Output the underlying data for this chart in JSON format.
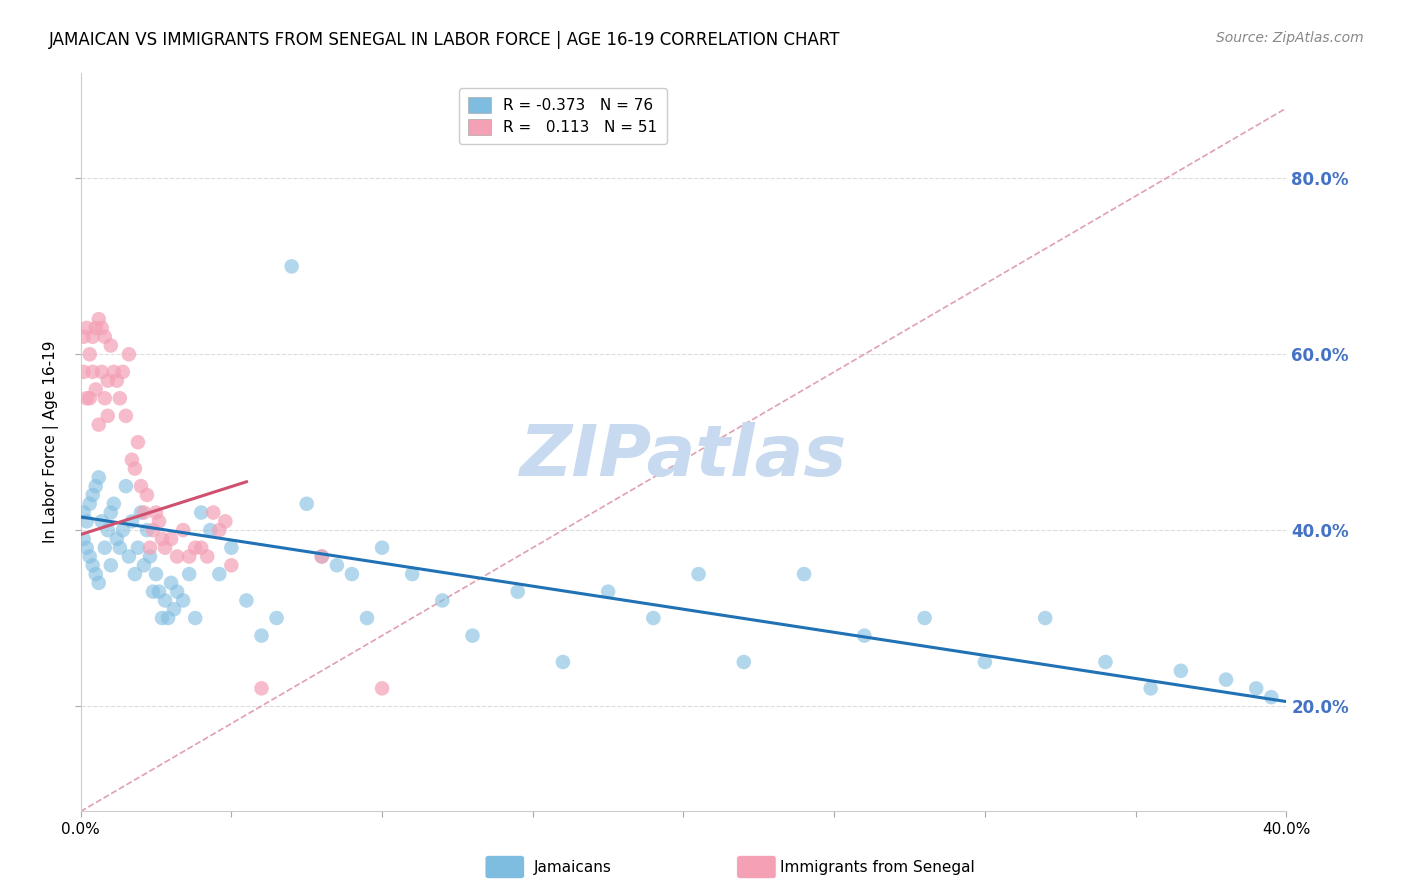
{
  "title": "JAMAICAN VS IMMIGRANTS FROM SENEGAL IN LABOR FORCE | AGE 16-19 CORRELATION CHART",
  "source": "Source: ZipAtlas.com",
  "ylabel": "In Labor Force | Age 16-19",
  "watermark": "ZIPatlas",
  "xlim": [
    0.0,
    0.4
  ],
  "ylim": [
    0.08,
    0.92
  ],
  "xtick_positions": [
    0.0,
    0.05,
    0.1,
    0.15,
    0.2,
    0.25,
    0.3,
    0.35,
    0.4
  ],
  "xtick_labels": [
    "0.0%",
    "",
    "",
    "",
    "",
    "",
    "",
    "",
    "40.0%"
  ],
  "yticks": [
    0.2,
    0.4,
    0.6,
    0.8
  ],
  "legend_line1": "R = -0.373   N = 76",
  "legend_line2": "R =   0.113   N = 51",
  "blue_scatter_x": [
    0.001,
    0.001,
    0.002,
    0.002,
    0.003,
    0.003,
    0.004,
    0.004,
    0.005,
    0.005,
    0.006,
    0.006,
    0.007,
    0.008,
    0.009,
    0.01,
    0.01,
    0.011,
    0.012,
    0.013,
    0.014,
    0.015,
    0.016,
    0.017,
    0.018,
    0.019,
    0.02,
    0.021,
    0.022,
    0.023,
    0.024,
    0.025,
    0.026,
    0.027,
    0.028,
    0.029,
    0.03,
    0.031,
    0.032,
    0.034,
    0.036,
    0.038,
    0.04,
    0.043,
    0.046,
    0.05,
    0.055,
    0.06,
    0.065,
    0.07,
    0.075,
    0.08,
    0.085,
    0.09,
    0.095,
    0.1,
    0.11,
    0.12,
    0.13,
    0.145,
    0.16,
    0.175,
    0.19,
    0.205,
    0.22,
    0.24,
    0.26,
    0.28,
    0.3,
    0.32,
    0.34,
    0.355,
    0.365,
    0.38,
    0.39,
    0.395
  ],
  "blue_scatter_y": [
    0.42,
    0.39,
    0.41,
    0.38,
    0.43,
    0.37,
    0.44,
    0.36,
    0.45,
    0.35,
    0.46,
    0.34,
    0.41,
    0.38,
    0.4,
    0.42,
    0.36,
    0.43,
    0.39,
    0.38,
    0.4,
    0.45,
    0.37,
    0.41,
    0.35,
    0.38,
    0.42,
    0.36,
    0.4,
    0.37,
    0.33,
    0.35,
    0.33,
    0.3,
    0.32,
    0.3,
    0.34,
    0.31,
    0.33,
    0.32,
    0.35,
    0.3,
    0.42,
    0.4,
    0.35,
    0.38,
    0.32,
    0.28,
    0.3,
    0.7,
    0.43,
    0.37,
    0.36,
    0.35,
    0.3,
    0.38,
    0.35,
    0.32,
    0.28,
    0.33,
    0.25,
    0.33,
    0.3,
    0.35,
    0.25,
    0.35,
    0.28,
    0.3,
    0.25,
    0.3,
    0.25,
    0.22,
    0.24,
    0.23,
    0.22,
    0.21
  ],
  "pink_scatter_x": [
    0.001,
    0.001,
    0.002,
    0.002,
    0.003,
    0.003,
    0.004,
    0.004,
    0.005,
    0.005,
    0.006,
    0.006,
    0.007,
    0.007,
    0.008,
    0.008,
    0.009,
    0.009,
    0.01,
    0.011,
    0.012,
    0.013,
    0.014,
    0.015,
    0.016,
    0.017,
    0.018,
    0.019,
    0.02,
    0.021,
    0.022,
    0.023,
    0.024,
    0.025,
    0.026,
    0.027,
    0.028,
    0.03,
    0.032,
    0.034,
    0.036,
    0.038,
    0.04,
    0.042,
    0.044,
    0.046,
    0.048,
    0.05,
    0.06,
    0.08,
    0.1
  ],
  "pink_scatter_y": [
    0.62,
    0.58,
    0.63,
    0.55,
    0.6,
    0.55,
    0.62,
    0.58,
    0.63,
    0.56,
    0.64,
    0.52,
    0.63,
    0.58,
    0.55,
    0.62,
    0.57,
    0.53,
    0.61,
    0.58,
    0.57,
    0.55,
    0.58,
    0.53,
    0.6,
    0.48,
    0.47,
    0.5,
    0.45,
    0.42,
    0.44,
    0.38,
    0.4,
    0.42,
    0.41,
    0.39,
    0.38,
    0.39,
    0.37,
    0.4,
    0.37,
    0.38,
    0.38,
    0.37,
    0.42,
    0.4,
    0.41,
    0.36,
    0.22,
    0.37,
    0.22
  ],
  "blue_line_x": [
    0.0,
    0.4
  ],
  "blue_line_y": [
    0.415,
    0.205
  ],
  "pink_line_x": [
    0.0,
    0.055
  ],
  "pink_line_y": [
    0.395,
    0.455
  ],
  "diag_line_x": [
    0.0,
    0.4
  ],
  "diag_line_y": [
    0.08,
    0.88
  ],
  "blue_color": "#7fbde0",
  "pink_color": "#f4a0b5",
  "blue_line_color": "#2171b5",
  "pink_line_color": "#d05070",
  "diag_color": "#e0a0b0",
  "background_color": "#ffffff",
  "grid_color": "#dddddd",
  "right_axis_color": "#4472c4",
  "title_fontsize": 12,
  "source_fontsize": 10,
  "axis_label_fontsize": 11,
  "tick_fontsize": 11,
  "watermark_fontsize": 52,
  "watermark_color": "#c8daf0",
  "legend_fontsize": 11,
  "scatter_size": 110
}
